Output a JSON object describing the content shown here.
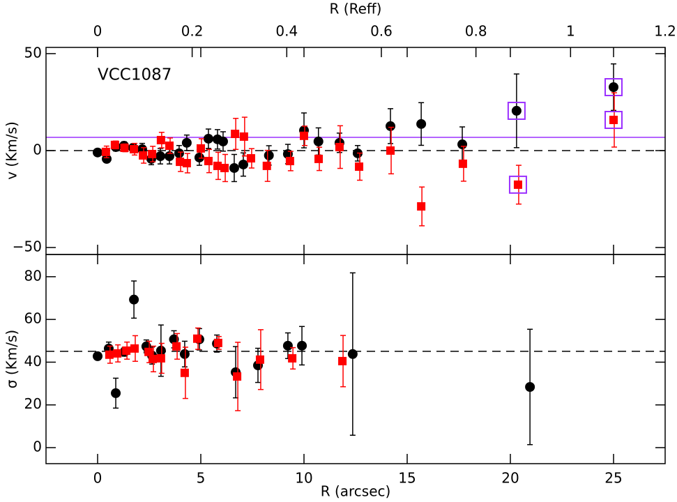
{
  "chart_data": [
    {
      "type": "scatter",
      "x2label": "R (Reff)",
      "x2lim": [
        -0.109,
        1.2
      ],
      "x2ticks": [
        0,
        0.2,
        0.4,
        0.6,
        0.8,
        1,
        1.2
      ],
      "ylabel": "v (Km/s)",
      "annotation": "VCC1087",
      "xlim": [
        -2.5,
        27.5
      ],
      "xticks": [
        0,
        5,
        10,
        15,
        20,
        25
      ],
      "ylim": [
        -53.6,
        53.2
      ],
      "yticks": [
        {
          "value": -50,
          "label": "−50"
        },
        0,
        50
      ],
      "hlines": [
        {
          "value": 0,
          "color": "#000000",
          "dashed": true
        },
        {
          "value": 6.8,
          "color": "#9b30ff",
          "dashed": false
        }
      ],
      "highlight_color": "#9b30ff",
      "series": [
        {
          "color": "#000000",
          "marker": "circle",
          "x": [
            0,
            0.44,
            0.88,
            1.28,
            1.72,
            2.16,
            2.6,
            3.04,
            3.48,
            3.95,
            4.32,
            4.93,
            5.37,
            5.81,
            6.08,
            6.62,
            7.06,
            8.3,
            9.22,
            10,
            10.7,
            11.72,
            12.6,
            14.19,
            15.68,
            17.67,
            20.3,
            25
          ],
          "values": [
            -1,
            -4.3,
            1.8,
            2.5,
            1.4,
            0.7,
            -4.3,
            -2.9,
            -2.9,
            -1.4,
            4,
            -3.6,
            6.1,
            5.8,
            4.7,
            -9,
            -7.2,
            -2.5,
            -1.8,
            10.4,
            4.7,
            4,
            -1.4,
            12.6,
            13.7,
            3.2,
            20.5,
            32.7
          ],
          "errors": [
            0.5,
            1,
            2,
            2,
            2,
            3,
            3,
            4,
            4,
            4,
            4,
            4,
            5,
            5,
            5,
            7,
            6,
            5,
            5,
            9,
            7,
            5,
            4,
            9,
            11,
            9,
            19,
            12
          ],
          "highlight": [
            26,
            27
          ]
        },
        {
          "color": "#ff0000",
          "marker": "square",
          "x": [
            0.4,
            0.84,
            1.3,
            1.76,
            2.2,
            2.64,
            3.07,
            3.48,
            3.99,
            4.32,
            5,
            5.37,
            5.81,
            6.15,
            6.66,
            7.09,
            7.43,
            8.2,
            9.32,
            10,
            10.71,
            11.72,
            12.67,
            14.19,
            15.68,
            17.7,
            20.37,
            25
          ],
          "values": [
            -0.7,
            2.9,
            1.4,
            0.7,
            -2.5,
            -1.8,
            5.4,
            2.5,
            -5.8,
            -6.5,
            1.1,
            -5.4,
            -7.9,
            -9,
            8.6,
            7.2,
            -4,
            -7.9,
            -5.4,
            7.6,
            -4.3,
            1.8,
            -8.3,
            0,
            -28.8,
            -6.8,
            -17.6,
            15.8
          ],
          "errors": [
            3,
            2,
            2,
            3,
            4,
            4,
            4,
            4,
            5,
            5,
            5,
            6,
            7,
            7,
            8,
            10,
            5,
            8,
            5,
            5,
            6,
            11,
            7,
            12,
            10,
            9,
            10,
            14
          ],
          "highlight": [
            26,
            27
          ]
        }
      ]
    },
    {
      "type": "scatter",
      "xlabel": "R (arcsec)",
      "ylabel": "σ (Km/s)",
      "xlim": [
        -2.5,
        27.5
      ],
      "xticks": [
        0,
        5,
        10,
        15,
        20,
        25
      ],
      "ylim": [
        -7.5,
        90.4
      ],
      "yticks": [
        0,
        20,
        40,
        60,
        80
      ],
      "hlines": [
        {
          "value": 45.1,
          "color": "#000000",
          "dashed": true
        }
      ],
      "series": [
        {
          "color": "#000000",
          "marker": "circle",
          "x": [
            0,
            0.54,
            0.88,
            1.3,
            1.76,
            2.36,
            2.64,
            3.07,
            3.7,
            4.22,
            4.93,
            5.78,
            6.69,
            7.77,
            9.22,
            9.9,
            12.36,
            20.95
          ],
          "values": [
            42.8,
            46.4,
            25.5,
            44.8,
            69.3,
            47.4,
            43.1,
            45.4,
            50.7,
            43.8,
            50.7,
            48.7,
            35.3,
            38.5,
            47.7,
            47.7,
            43.8,
            28.4
          ],
          "errors": [
            1,
            3,
            7,
            2,
            8.7,
            3,
            4,
            12,
            4,
            6,
            5,
            4,
            12,
            8,
            6,
            9,
            38,
            27
          ]
        },
        {
          "color": "#ff0000",
          "marker": "square",
          "x": [
            0.57,
            0.95,
            1.39,
            1.79,
            2.47,
            2.67,
            3.07,
            3.82,
            4.22,
            4.83,
            5.84,
            6.76,
            7.87,
            9.43,
            11.86
          ],
          "values": [
            43.5,
            44.1,
            45.4,
            46.4,
            44.8,
            41.5,
            41.8,
            47.4,
            35,
            51,
            49,
            33.3,
            41.2,
            41.8,
            40.5
          ],
          "errors": [
            4,
            4,
            4,
            6,
            5,
            6,
            7,
            6,
            12,
            5,
            3,
            16,
            14,
            5,
            12
          ]
        }
      ]
    }
  ]
}
